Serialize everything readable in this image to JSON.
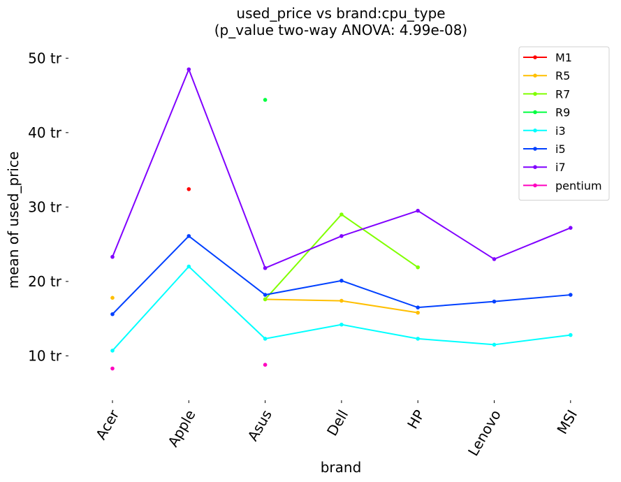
{
  "chart_data": {
    "type": "line",
    "title_line1": "used_price vs brand:cpu_type",
    "title_line2": "(p_value two-way ANOVA: 4.99e-08)",
    "xlabel": "brand",
    "ylabel": "mean of used_price",
    "categories": [
      "Acer",
      "Apple",
      "Asus",
      "Dell",
      "HP",
      "Lenovo",
      "MSI"
    ],
    "yticks": [
      {
        "value": 10,
        "label": "10 tr"
      },
      {
        "value": 20,
        "label": "20 tr"
      },
      {
        "value": 30,
        "label": "30 tr"
      },
      {
        "value": 40,
        "label": "40 tr"
      },
      {
        "value": 50,
        "label": "50 tr"
      }
    ],
    "ylim": [
      4.5,
      52
    ],
    "grid": false,
    "legend_position": "top-right",
    "series": [
      {
        "name": "M1",
        "color": "#ff0000",
        "values": [
          null,
          32.4,
          null,
          null,
          null,
          null,
          null
        ]
      },
      {
        "name": "R5",
        "color": "#ffbf00",
        "values": [
          17.8,
          null,
          17.6,
          17.4,
          15.8,
          null,
          null
        ]
      },
      {
        "name": "R7",
        "color": "#80ff00",
        "values": [
          null,
          null,
          17.6,
          29.0,
          21.9,
          null,
          null
        ]
      },
      {
        "name": "R9",
        "color": "#00ff40",
        "values": [
          null,
          null,
          44.4,
          null,
          null,
          null,
          null
        ]
      },
      {
        "name": "i3",
        "color": "#00ffff",
        "values": [
          10.7,
          22.0,
          12.3,
          14.2,
          12.3,
          11.5,
          12.8
        ]
      },
      {
        "name": "i5",
        "color": "#0040ff",
        "values": [
          15.6,
          26.1,
          18.2,
          20.1,
          16.5,
          17.3,
          18.2
        ]
      },
      {
        "name": "i7",
        "color": "#8000ff",
        "values": [
          23.3,
          48.5,
          21.8,
          26.1,
          29.5,
          23.0,
          27.2
        ]
      },
      {
        "name": "pentium",
        "color": "#ff00bf",
        "values": [
          8.3,
          null,
          8.8,
          null,
          null,
          null,
          null
        ]
      }
    ]
  }
}
